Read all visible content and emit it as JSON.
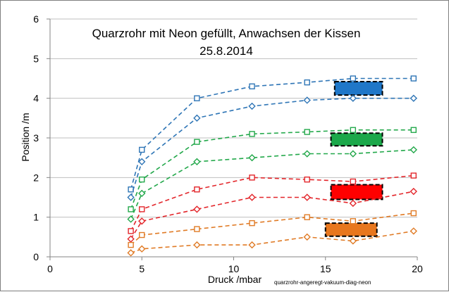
{
  "chart_data": {
    "type": "scatter",
    "title": "Quarzrohr mit Neon gefüllt, Anwachsen der Kissen",
    "subtitle": "25.8.2014",
    "xlabel": "Druck /mbar",
    "ylabel": "Position /m",
    "xlim": [
      0,
      20
    ],
    "ylim": [
      0,
      6
    ],
    "x_ticks": [
      "0",
      "5",
      "10",
      "15",
      "20"
    ],
    "y_ticks": [
      "0",
      "1",
      "2",
      "3",
      "4",
      "5",
      "6"
    ],
    "grid": "horizontal",
    "legend": "none",
    "annotation": "quarzrohr-angeregt-vakuum-diag-neon",
    "series": [
      {
        "color": "#2E75B6",
        "marker": "square",
        "line": "dashed",
        "x": [
          4.4,
          5,
          8,
          11,
          14,
          16.5,
          19.8
        ],
        "y": [
          1.7,
          2.7,
          4.0,
          4.3,
          4.4,
          4.5,
          4.5
        ]
      },
      {
        "color": "#2E75B6",
        "marker": "diamond",
        "line": "dashed",
        "x": [
          4.4,
          5,
          8,
          11,
          14,
          16.5,
          19.8
        ],
        "y": [
          1.5,
          2.4,
          3.5,
          3.8,
          3.95,
          4.0,
          4.0
        ]
      },
      {
        "color": "#22A84A",
        "marker": "square",
        "line": "dashed",
        "x": [
          4.4,
          5,
          8,
          11,
          14,
          16.5,
          19.8
        ],
        "y": [
          1.2,
          1.95,
          2.9,
          3.1,
          3.15,
          3.2,
          3.2
        ]
      },
      {
        "color": "#22A84A",
        "marker": "diamond",
        "line": "dashed",
        "x": [
          4.4,
          5,
          8,
          11,
          14,
          16.5,
          19.8
        ],
        "y": [
          0.95,
          1.6,
          2.4,
          2.5,
          2.6,
          2.6,
          2.7
        ]
      },
      {
        "color": "#E3262B",
        "marker": "square",
        "line": "dashed",
        "x": [
          4.4,
          5,
          8,
          11,
          14,
          16.5,
          19.8
        ],
        "y": [
          0.65,
          1.2,
          1.7,
          2.0,
          1.95,
          1.9,
          2.05
        ]
      },
      {
        "color": "#E3262B",
        "marker": "diamond",
        "line": "dashed",
        "x": [
          4.4,
          5,
          8,
          11,
          14,
          16.5,
          19.8
        ],
        "y": [
          0.45,
          0.9,
          1.2,
          1.5,
          1.5,
          1.35,
          1.65
        ]
      },
      {
        "color": "#E07B26",
        "marker": "square",
        "line": "dashed",
        "x": [
          4.4,
          5,
          8,
          11,
          14,
          16.5,
          19.8
        ],
        "y": [
          0.3,
          0.55,
          0.7,
          0.85,
          1.0,
          0.9,
          1.1
        ]
      },
      {
        "color": "#E07B26",
        "marker": "diamond",
        "line": "dashed",
        "x": [
          4.4,
          5,
          8,
          11,
          14,
          16.5,
          19.8
        ],
        "y": [
          0.1,
          0.2,
          0.3,
          0.3,
          0.5,
          0.4,
          0.65
        ]
      }
    ],
    "boxes": [
      {
        "color": "#1F77C8",
        "x": [
          15.5,
          18.1
        ],
        "y": [
          4.08,
          4.42
        ]
      },
      {
        "color": "#1BA84A",
        "x": [
          15.3,
          18.1
        ],
        "y": [
          2.8,
          3.12
        ]
      },
      {
        "color": "#FF0000",
        "x": [
          15.3,
          18.1
        ],
        "y": [
          1.45,
          1.82
        ]
      },
      {
        "color": "#E8771E",
        "x": [
          15.0,
          17.8
        ],
        "y": [
          0.52,
          0.85
        ]
      }
    ]
  }
}
